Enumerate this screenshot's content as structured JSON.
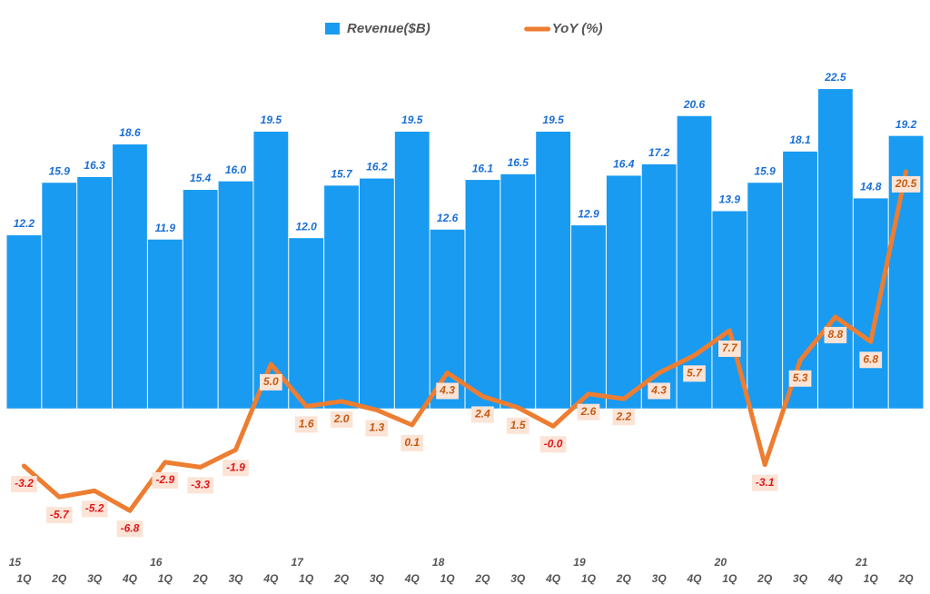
{
  "chart_data": {
    "type": "combo",
    "categories": [
      "1Q",
      "2Q",
      "3Q",
      "4Q",
      "1Q",
      "2Q",
      "3Q",
      "4Q",
      "1Q",
      "2Q",
      "3Q",
      "4Q",
      "1Q",
      "2Q",
      "3Q",
      "4Q",
      "1Q",
      "2Q",
      "3Q",
      "4Q",
      "1Q",
      "2Q",
      "3Q",
      "4Q",
      "1Q",
      "2Q"
    ],
    "category_groups": [
      "15",
      null,
      null,
      null,
      "16",
      null,
      null,
      null,
      "17",
      null,
      null,
      null,
      "18",
      null,
      null,
      null,
      "19",
      null,
      null,
      null,
      "20",
      null,
      null,
      null,
      "21",
      null
    ],
    "ylim": [
      -10,
      25
    ],
    "y2lim": [
      -10,
      30
    ],
    "series": [
      {
        "name": "Revenue($B)",
        "type": "bar",
        "color": "#1a9bf2",
        "values": [
          12.2,
          15.9,
          16.3,
          18.6,
          11.9,
          15.4,
          16.0,
          19.5,
          12.0,
          15.7,
          16.2,
          19.5,
          12.6,
          16.1,
          16.5,
          19.5,
          12.9,
          16.4,
          17.2,
          20.6,
          13.9,
          15.9,
          18.1,
          22.5,
          14.8,
          19.2
        ],
        "value_labels": [
          "12.2",
          "15.9",
          "16.3",
          "18.6",
          "11.9",
          "15.4",
          "16.0",
          "19.5",
          "12.0",
          "15.7",
          "16.2",
          "19.5",
          "12.6",
          "16.1",
          "16.5",
          "19.5",
          "12.9",
          "16.4",
          "17.2",
          "20.6",
          "13.9",
          "15.9",
          "18.1",
          "22.5",
          "14.8",
          "19.2"
        ]
      },
      {
        "name": "YoY (%)",
        "type": "line",
        "axis": "y2",
        "color": "#ed7d31",
        "values": [
          -3.2,
          -5.7,
          -5.2,
          -6.8,
          -2.9,
          -3.3,
          -1.9,
          5.0,
          1.6,
          2.0,
          1.3,
          0.1,
          4.3,
          2.4,
          1.5,
          -0.0,
          2.6,
          2.2,
          4.3,
          5.7,
          7.7,
          -3.1,
          5.3,
          8.8,
          6.8,
          20.5
        ],
        "value_labels": [
          "-3.2",
          "-5.7",
          "-5.2",
          "-6.8",
          "-2.9",
          "-3.3",
          "-1.9",
          "5.0",
          "1.6",
          "2.0",
          "1.3",
          "0.1",
          "4.3",
          "2.4",
          "1.5",
          "-0.0",
          "2.6",
          "2.2",
          "4.3",
          "5.7",
          "7.7",
          "-3.1",
          "5.3",
          "8.8",
          "6.8",
          "20.5"
        ]
      }
    ]
  }
}
